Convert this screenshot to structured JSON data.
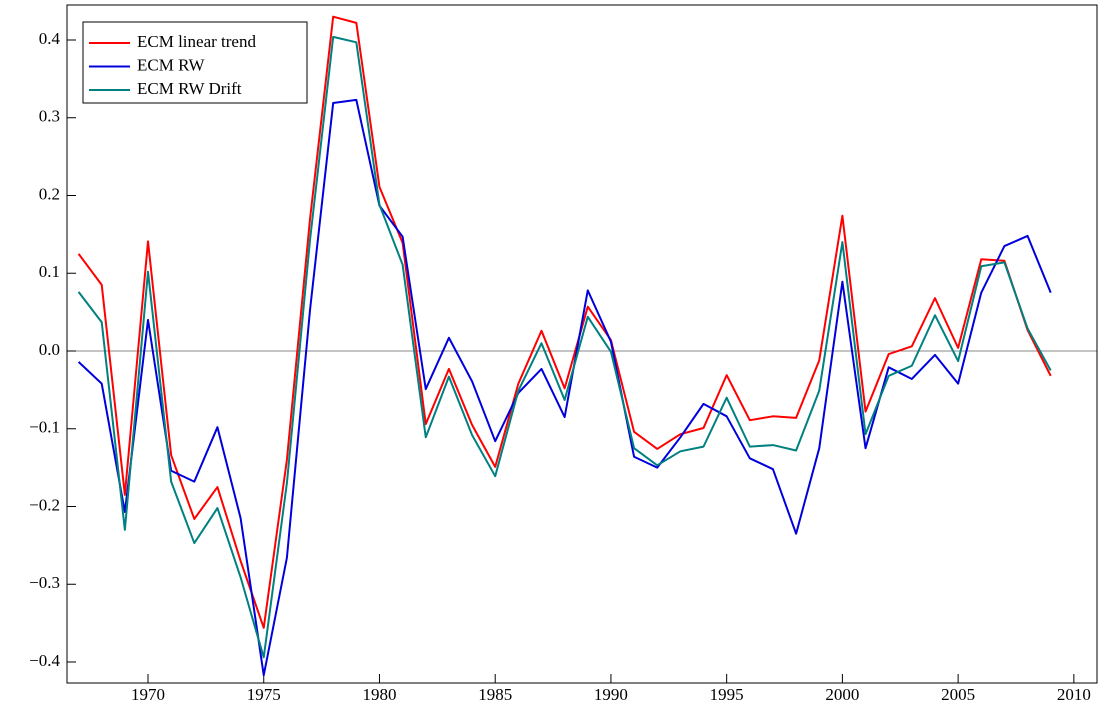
{
  "chart_data": {
    "type": "line",
    "x": [
      1967,
      1968,
      1969,
      1970,
      1971,
      1972,
      1973,
      1974,
      1975,
      1976,
      1977,
      1978,
      1979,
      1980,
      1981,
      1982,
      1983,
      1984,
      1985,
      1986,
      1987,
      1988,
      1989,
      1990,
      1991,
      1992,
      1993,
      1994,
      1995,
      1996,
      1997,
      1998,
      1999,
      2000,
      2001,
      2002,
      2003,
      2004,
      2005,
      2006,
      2007,
      2008,
      2009
    ],
    "series": [
      {
        "name": "ECM linear trend",
        "color": "#ff0000",
        "values": [
          0.125,
          0.085,
          -0.185,
          0.141,
          -0.134,
          -0.216,
          -0.175,
          -0.27,
          -0.356,
          -0.14,
          0.17,
          0.43,
          0.422,
          0.211,
          0.139,
          -0.094,
          -0.023,
          -0.095,
          -0.149,
          -0.042,
          0.026,
          -0.048,
          0.057,
          0.014,
          -0.104,
          -0.126,
          -0.107,
          -0.099,
          -0.031,
          -0.089,
          -0.084,
          -0.086,
          -0.012,
          0.174,
          -0.078,
          -0.004,
          0.006,
          0.068,
          0.004,
          0.118,
          0.116,
          0.027,
          -0.032
        ]
      },
      {
        "name": "ECM RW",
        "color": "#0000dd",
        "values": [
          -0.014,
          -0.042,
          -0.207,
          0.04,
          -0.154,
          -0.168,
          -0.098,
          -0.215,
          -0.417,
          -0.266,
          0.053,
          0.319,
          0.323,
          0.187,
          0.147,
          -0.049,
          0.017,
          -0.039,
          -0.116,
          -0.054,
          -0.023,
          -0.085,
          0.078,
          0.012,
          -0.136,
          -0.15,
          -0.111,
          -0.068,
          -0.084,
          -0.138,
          -0.152,
          -0.235,
          -0.125,
          0.089,
          -0.125,
          -0.021,
          -0.036,
          -0.005,
          -0.042,
          0.075,
          0.135,
          0.148,
          0.075
        ]
      },
      {
        "name": "ECM RW Drift",
        "color": "#008080",
        "values": [
          0.076,
          0.037,
          -0.23,
          0.102,
          -0.168,
          -0.247,
          -0.202,
          -0.291,
          -0.394,
          -0.17,
          0.143,
          0.404,
          0.397,
          0.188,
          0.111,
          -0.111,
          -0.033,
          -0.108,
          -0.161,
          -0.051,
          0.01,
          -0.063,
          0.044,
          -0.001,
          -0.125,
          -0.147,
          -0.129,
          -0.123,
          -0.06,
          -0.123,
          -0.121,
          -0.128,
          -0.051,
          0.14,
          -0.107,
          -0.032,
          -0.019,
          0.046,
          -0.013,
          0.109,
          0.114,
          0.029,
          -0.025
        ]
      }
    ],
    "xlim": [
      1966.5,
      2011
    ],
    "xticks": [
      1970,
      1975,
      1980,
      1985,
      1990,
      1995,
      2000,
      2005,
      2010
    ],
    "ylim": [
      -0.427,
      0.445
    ],
    "yticks": [
      {
        "value": -0.4,
        "label": "−0.4"
      },
      {
        "value": -0.3,
        "label": "−0.3"
      },
      {
        "value": -0.2,
        "label": "−0.2"
      },
      {
        "value": -0.1,
        "label": "−0.1"
      },
      {
        "value": 0,
        "label": "0.0"
      },
      0.1,
      0.2,
      0.3,
      0.4
    ],
    "legend": "top-left"
  }
}
